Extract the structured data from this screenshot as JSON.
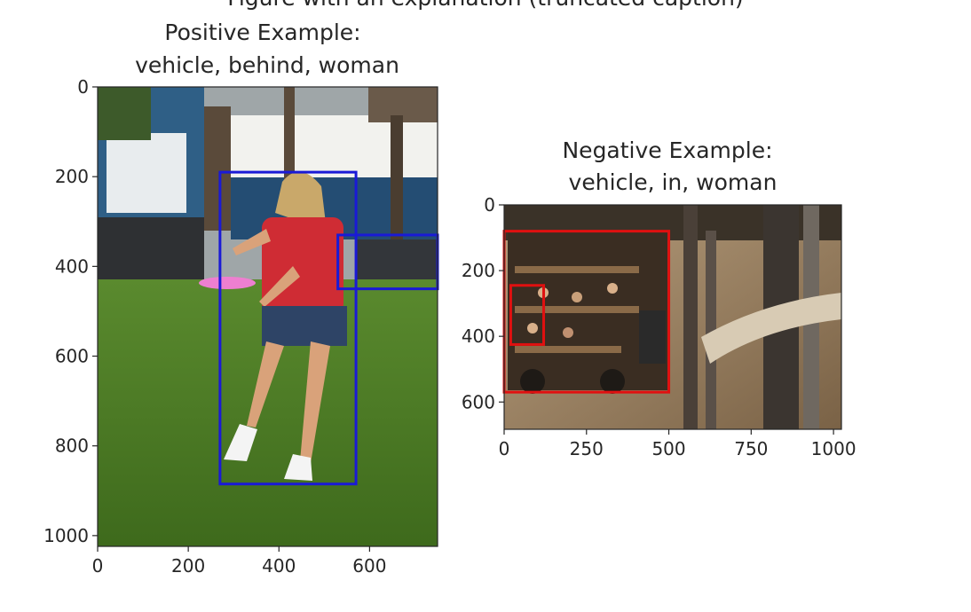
{
  "figure_heading_clipped": "Figure with an explanation (truncated caption)",
  "chart_data": [
    {
      "type": "image",
      "title_line1": "Positive Example:",
      "title_line2": "vehicle, behind, woman",
      "image_description": "Woman in red shirt throwing pink frisbee on grass; a dark vehicle parked behind her",
      "xlim": [
        0,
        750
      ],
      "ylim": [
        1024,
        0
      ],
      "xticks": [
        0,
        200,
        400,
        600
      ],
      "yticks": [
        0,
        200,
        400,
        600,
        800,
        1000
      ],
      "box_color": "#1a1ad6",
      "boxes": [
        {
          "label": "woman",
          "x1": 270,
          "y1": 190,
          "x2": 570,
          "y2": 885
        },
        {
          "label": "vehicle",
          "x1": 530,
          "y1": 330,
          "x2": 750,
          "y2": 450
        }
      ]
    },
    {
      "type": "image",
      "title_line1": "Negative Example:",
      "title_line2": "vehicle, in, woman",
      "image_description": "Tractor-drawn hay wagon full of people on a dirt road among trees",
      "xlim": [
        0,
        1024
      ],
      "ylim": [
        683,
        0
      ],
      "xticks": [
        0,
        250,
        500,
        750,
        1000
      ],
      "yticks": [
        0,
        200,
        400,
        600
      ],
      "box_color": "#e01010",
      "boxes": [
        {
          "label": "vehicle",
          "x1": 0,
          "y1": 80,
          "x2": 500,
          "y2": 570
        },
        {
          "label": "woman",
          "x1": 20,
          "y1": 245,
          "x2": 120,
          "y2": 425
        }
      ]
    }
  ]
}
